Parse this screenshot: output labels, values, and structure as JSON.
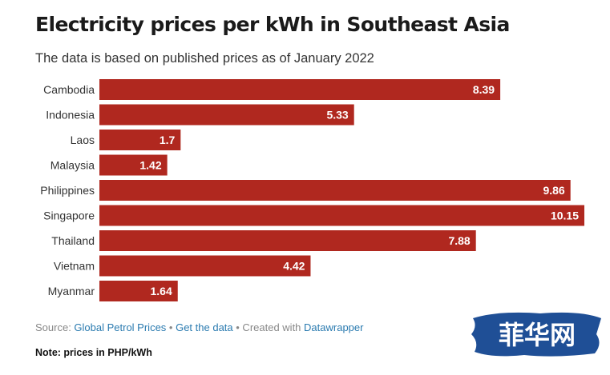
{
  "header": {
    "title": "Electricity prices per kWh in Southeast Asia",
    "subtitle": "The data is based on published prices as of January 2022"
  },
  "footer": {
    "source_prefix": "Source: ",
    "source_link": "Global Petrol Prices",
    "sep1": " • ",
    "get_data": "Get the data",
    "sep2": " • Created with ",
    "datawrapper": "Datawrapper"
  },
  "note": "Note: prices in PHP/kWh",
  "watermark": {
    "text": "菲华网"
  },
  "colors": {
    "bar": "#b0281f",
    "link": "#2b7bb0",
    "watermark": "#1f4f96"
  },
  "chart_data": {
    "type": "bar",
    "orientation": "horizontal",
    "categories": [
      "Cambodia",
      "Indonesia",
      "Laos",
      "Malaysia",
      "Philippines",
      "Singapore",
      "Thailand",
      "Vietnam",
      "Myanmar"
    ],
    "values": [
      8.39,
      5.33,
      1.7,
      1.42,
      9.86,
      10.15,
      7.88,
      4.42,
      1.64
    ],
    "value_labels": [
      "8.39",
      "5.33",
      "1.7",
      "1.42",
      "9.86",
      "10.15",
      "7.88",
      "4.42",
      "1.64"
    ],
    "xlim": [
      0,
      10.15
    ],
    "grid": false,
    "legend": "none"
  }
}
